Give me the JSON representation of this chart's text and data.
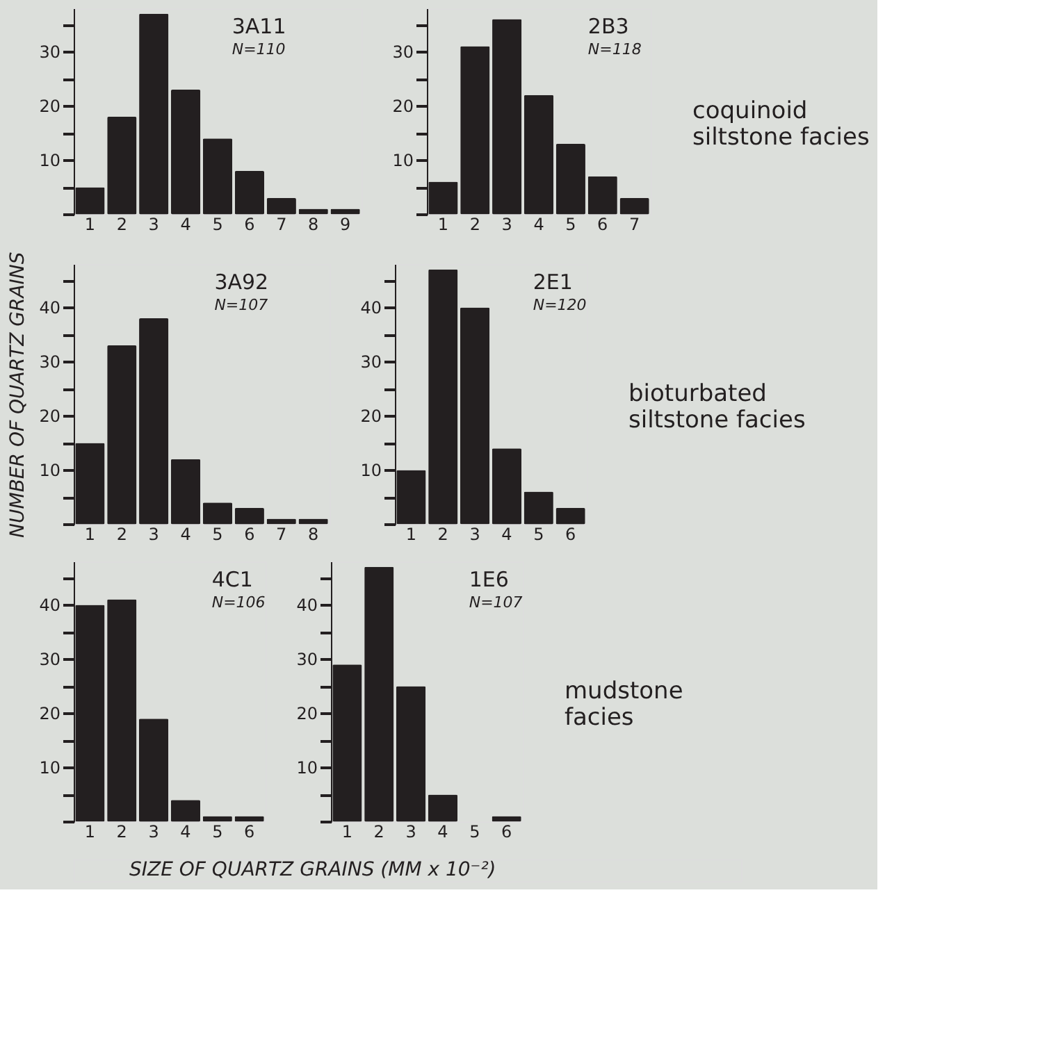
{
  "chart_data": [
    {
      "type": "bar",
      "title": "3A11",
      "subtitle": "N=110",
      "categories": [
        "1",
        "2",
        "3",
        "4",
        "5",
        "6",
        "7",
        "8",
        "9"
      ],
      "values": [
        5,
        18,
        37,
        23,
        14,
        8,
        3,
        1,
        1
      ],
      "color": "#231f20",
      "ylim": [
        0,
        38
      ],
      "yticks": [
        {
          "value": 0,
          "label": null
        },
        {
          "value": 5,
          "label": null
        },
        10,
        {
          "value": 15,
          "label": null
        },
        20,
        {
          "value": 25,
          "label": null
        },
        30,
        {
          "value": 35,
          "label": null
        }
      ]
    },
    {
      "type": "bar",
      "title": "2B3",
      "subtitle": "N=118",
      "categories": [
        "1",
        "2",
        "3",
        "4",
        "5",
        "6",
        "7"
      ],
      "values": [
        6,
        31,
        36,
        22,
        13,
        7,
        3
      ],
      "color": "#231f20",
      "ylim": [
        0,
        38
      ],
      "yticks": [
        {
          "value": 0,
          "label": null
        },
        {
          "value": 5,
          "label": null
        },
        10,
        {
          "value": 15,
          "label": null
        },
        20,
        {
          "value": 25,
          "label": null
        },
        30,
        {
          "value": 35,
          "label": null
        }
      ],
      "annotations": [
        "coquinoid\nsiltstone facies"
      ]
    },
    {
      "type": "bar",
      "title": "3A92",
      "subtitle": "N=107",
      "ylabel": "NUMBER OF QUARTZ GRAINS",
      "categories": [
        "1",
        "2",
        "3",
        "4",
        "5",
        "6",
        "7",
        "8"
      ],
      "values": [
        15,
        33,
        38,
        12,
        4,
        3,
        1,
        1
      ],
      "color": "#231f20",
      "ylim": [
        0,
        48
      ],
      "yticks": [
        {
          "value": 0,
          "label": null
        },
        {
          "value": 5,
          "label": null
        },
        10,
        {
          "value": 15,
          "label": null
        },
        20,
        {
          "value": 25,
          "label": null
        },
        30,
        {
          "value": 35,
          "label": null
        },
        40,
        {
          "value": 45,
          "label": null
        }
      ]
    },
    {
      "type": "bar",
      "title": "2E1",
      "subtitle": "N=120",
      "categories": [
        "1",
        "2",
        "3",
        "4",
        "5",
        "6"
      ],
      "values": [
        10,
        47,
        40,
        14,
        6,
        3
      ],
      "color": "#231f20",
      "ylim": [
        0,
        48
      ],
      "yticks": [
        {
          "value": 0,
          "label": null
        },
        {
          "value": 5,
          "label": null
        },
        10,
        {
          "value": 15,
          "label": null
        },
        20,
        {
          "value": 25,
          "label": null
        },
        30,
        {
          "value": 35,
          "label": null
        },
        40,
        {
          "value": 45,
          "label": null
        }
      ],
      "annotations": [
        "bioturbated\nsiltstone facies"
      ]
    },
    {
      "type": "bar",
      "title": "4C1",
      "subtitle": "N=106",
      "xlabel": "SIZE OF QUARTZ GRAINS (MM x 10⁻²)",
      "categories": [
        "1",
        "2",
        "3",
        "4",
        "5",
        "6"
      ],
      "values": [
        40,
        41,
        19,
        4,
        1,
        1
      ],
      "color": "#231f20",
      "ylim": [
        0,
        48
      ],
      "yticks": [
        {
          "value": 0,
          "label": null
        },
        {
          "value": 5,
          "label": null
        },
        10,
        {
          "value": 15,
          "label": null
        },
        20,
        {
          "value": 25,
          "label": null
        },
        30,
        {
          "value": 35,
          "label": null
        },
        40,
        {
          "value": 45,
          "label": null
        }
      ]
    },
    {
      "type": "bar",
      "title": "1E6",
      "subtitle": "N=107",
      "categories": [
        "1",
        "2",
        "3",
        "4",
        "5",
        "6"
      ],
      "values": [
        29,
        47,
        25,
        5,
        0,
        1
      ],
      "color": "#231f20",
      "ylim": [
        0,
        48
      ],
      "yticks": [
        {
          "value": 0,
          "label": null
        },
        {
          "value": 5,
          "label": null
        },
        10,
        {
          "value": 15,
          "label": null
        },
        20,
        {
          "value": 25,
          "label": null
        },
        30,
        {
          "value": 35,
          "label": null
        },
        40,
        {
          "value": 45,
          "label": null
        }
      ],
      "annotations": [
        "mudstone\nfacies"
      ]
    }
  ]
}
